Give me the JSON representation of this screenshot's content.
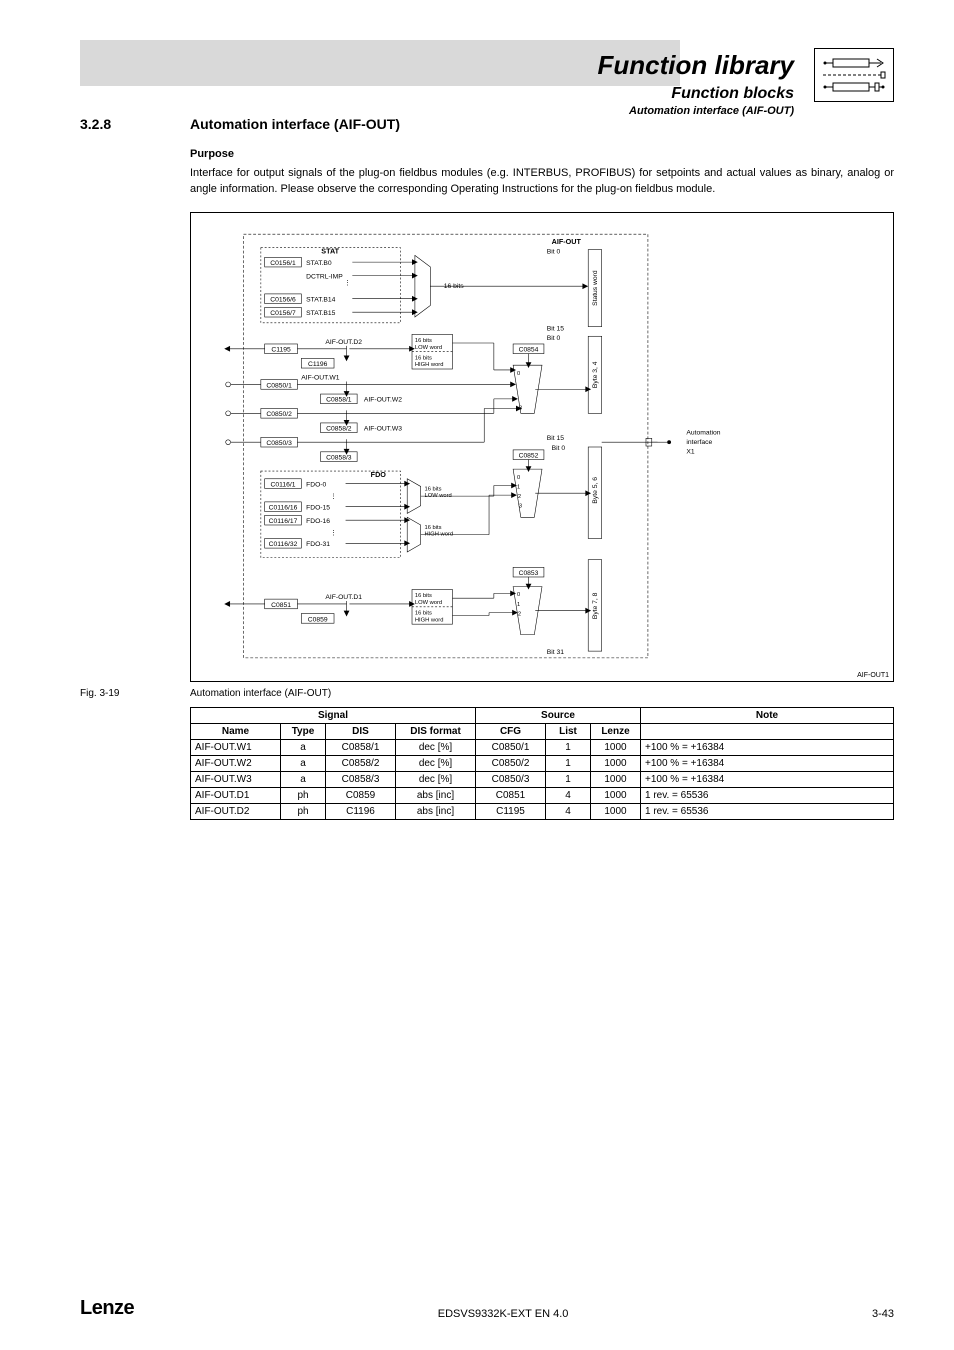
{
  "header": {
    "title": "Function library",
    "subtitle": "Function blocks",
    "subsubtitle": "Automation interface (AIF-OUT)"
  },
  "section": {
    "number": "3.2.8",
    "title": "Automation interface (AIF-OUT)"
  },
  "purpose": {
    "heading": "Purpose",
    "text": "Interface for output signals of the plug-on fieldbus modules (e.g. INTERBUS, PROFIBUS) for setpoints and actual values as binary, analog or angle information. Please observe the corresponding Operating Instructions for the plug-on fieldbus module."
  },
  "diagram": {
    "title": "AIF-OUT",
    "stat_block": {
      "label": "STAT",
      "codes": [
        "C0156/1",
        "C0156/6",
        "C0156/7"
      ],
      "signals": [
        "STAT.B0",
        "DCTRL-IMP",
        "STAT.B14",
        "STAT.B15"
      ],
      "mux_label": "16 bits"
    },
    "d2_block": {
      "code": "C1195",
      "sub_code": "C1196",
      "signal": "AIF-OUT.D2",
      "low": "16 bits LOW word",
      "high": "16 bits HIGH word"
    },
    "w_blocks": [
      {
        "code": "C0850/1",
        "sub": "C0858/1",
        "label": "AIF-OUT.W1",
        "wlabel": "AIF-OUT.W2"
      },
      {
        "code": "C0850/2",
        "sub": "C0858/2",
        "label": "",
        "wlabel": "AIF-OUT.W3"
      },
      {
        "code": "C0850/3",
        "sub": "C0858/3",
        "label": "",
        "wlabel": ""
      }
    ],
    "fdo_block": {
      "label": "FDO",
      "codes": [
        "C0116/1",
        "C0116/16",
        "C0116/17",
        "C0116/32"
      ],
      "signals": [
        "FDO-0",
        "FDO-15",
        "FDO-16",
        "FDO-31"
      ],
      "low": "16 bits LOW word",
      "high": "16 bits HIGH word"
    },
    "d1_block": {
      "code": "C0851",
      "sub_code": "C0859",
      "signal": "AIF-OUT.D1",
      "low": "16 bits LOW word",
      "high": "16 bits HIGH word"
    },
    "mux_codes": [
      "C0854",
      "C0852",
      "C0853"
    ],
    "bits": [
      "Bit 0",
      "Bit 15",
      "Bit 0",
      "Bit 15",
      "Bit 0",
      "Bit 31"
    ],
    "bytes": [
      "Status word",
      "Byte 3, 4",
      "Byte 5, 6",
      "Byte 7, 8"
    ],
    "output": "Automation interface X1",
    "footnote": "AIF-OUT1"
  },
  "figure": {
    "label": "Fig. 3-19",
    "caption": "Automation interface (AIF-OUT)"
  },
  "table": {
    "headers": {
      "signal": "Signal",
      "source": "Source",
      "note": "Note",
      "name": "Name",
      "type": "Type",
      "dis": "DIS",
      "disfmt": "DIS format",
      "cfg": "CFG",
      "list": "List",
      "lenze": "Lenze"
    },
    "rows": [
      {
        "name": "AIF-OUT.W1",
        "type": "a",
        "dis": "C0858/1",
        "disfmt": "dec [%]",
        "cfg": "C0850/1",
        "list": "1",
        "lenze": "1000",
        "note": "+100 % = +16384"
      },
      {
        "name": "AIF-OUT.W2",
        "type": "a",
        "dis": "C0858/2",
        "disfmt": "dec [%]",
        "cfg": "C0850/2",
        "list": "1",
        "lenze": "1000",
        "note": "+100 % = +16384"
      },
      {
        "name": "AIF-OUT.W3",
        "type": "a",
        "dis": "C0858/3",
        "disfmt": "dec [%]",
        "cfg": "C0850/3",
        "list": "1",
        "lenze": "1000",
        "note": "+100 % = +16384"
      },
      {
        "name": "AIF-OUT.D1",
        "type": "ph",
        "dis": "C0859",
        "disfmt": "abs [inc]",
        "cfg": "C0851",
        "list": "4",
        "lenze": "1000",
        "note": "1 rev. = 65536"
      },
      {
        "name": "AIF-OUT.D2",
        "type": "ph",
        "dis": "C1196",
        "disfmt": "abs [inc]",
        "cfg": "C1195",
        "list": "4",
        "lenze": "1000",
        "note": "1 rev. = 65536"
      }
    ]
  },
  "footer": {
    "brand": "Lenze",
    "doc_id": "EDSVS9332K-EXT EN 4.0",
    "page_num": "3-43"
  }
}
